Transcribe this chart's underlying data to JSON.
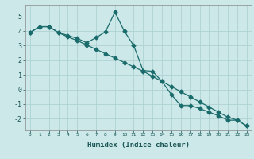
{
  "xlabel": "Humidex (Indice chaleur)",
  "ylabel": "",
  "bg_color": "#cce8e8",
  "grid_color": "#aacece",
  "line_color": "#1a6b6b",
  "marker": "D",
  "markersize": 2.5,
  "linewidth": 0.9,
  "x_ticks": [
    0,
    1,
    2,
    3,
    4,
    5,
    6,
    7,
    8,
    9,
    10,
    11,
    12,
    13,
    14,
    15,
    16,
    17,
    18,
    19,
    20,
    21,
    22,
    23
  ],
  "y_ticks": [
    -2,
    -1,
    0,
    1,
    2,
    3,
    4,
    5
  ],
  "ylim": [
    -2.8,
    5.8
  ],
  "xlim": [
    -0.5,
    23.5
  ],
  "series1_x": [
    0,
    1,
    2,
    3,
    4,
    5,
    6,
    7,
    8,
    9,
    10,
    11,
    12,
    13,
    14,
    15,
    16,
    17,
    18,
    19,
    20,
    21,
    22,
    23
  ],
  "series1_y": [
    3.9,
    4.3,
    4.3,
    3.9,
    3.7,
    3.5,
    3.2,
    3.55,
    3.95,
    5.3,
    4.0,
    3.0,
    1.3,
    1.25,
    0.55,
    -0.35,
    -1.1,
    -1.1,
    -1.3,
    -1.55,
    -1.8,
    -2.1,
    -2.1,
    -2.5
  ],
  "series2_x": [
    0,
    1,
    2,
    3,
    4,
    5,
    6,
    7,
    8,
    9,
    10,
    11,
    12,
    13,
    14,
    15,
    16,
    17,
    18,
    19,
    20,
    21,
    22,
    23
  ],
  "series2_y": [
    3.9,
    4.3,
    4.3,
    3.9,
    3.6,
    3.35,
    3.05,
    2.75,
    2.45,
    2.15,
    1.85,
    1.55,
    1.25,
    0.9,
    0.55,
    0.2,
    -0.15,
    -0.5,
    -0.85,
    -1.2,
    -1.55,
    -1.9,
    -2.1,
    -2.5
  ],
  "x_tick_labels": [
    "0",
    "1",
    "2",
    "3",
    "4",
    "5",
    "6",
    "7",
    "8",
    "9",
    "10",
    "11",
    "12",
    "13",
    "14",
    "15",
    "16",
    "17",
    "18",
    "19",
    "20",
    "21",
    "22",
    "23"
  ],
  "y_tick_labels": [
    "-2",
    "-1",
    "0",
    "1",
    "2",
    "3",
    "4",
    "5"
  ]
}
